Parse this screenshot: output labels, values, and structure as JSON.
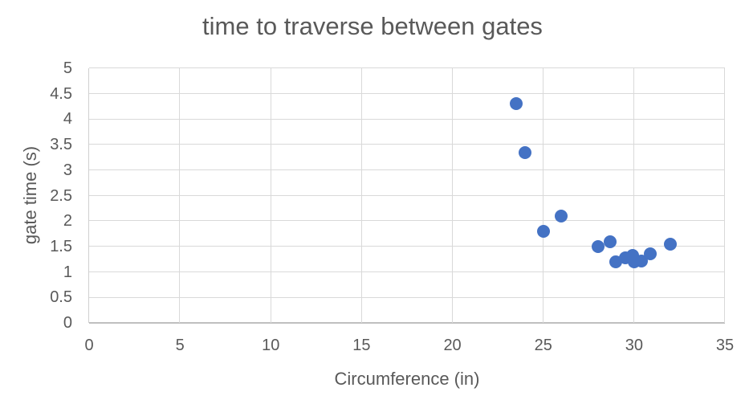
{
  "chart_data": {
    "type": "scatter",
    "title": "time to traverse between gates",
    "xlabel": "Circumference (in)",
    "ylabel": "gate time (s)",
    "xlim": [
      0,
      35
    ],
    "ylim": [
      0,
      5
    ],
    "x_ticks": [
      0,
      5,
      10,
      15,
      20,
      25,
      30,
      35
    ],
    "y_ticks": [
      0,
      0.5,
      1,
      1.5,
      2,
      2.5,
      3,
      3.5,
      4,
      4.5,
      5
    ],
    "grid": true,
    "legend": "none",
    "series": [
      {
        "name": "gate time",
        "marker": "circle",
        "marker_color": "#4472C4",
        "points": [
          [
            23.5,
            4.3
          ],
          [
            24,
            3.35
          ],
          [
            25,
            1.8
          ],
          [
            26,
            2.1
          ],
          [
            28,
            1.5
          ],
          [
            28.7,
            1.6
          ],
          [
            29,
            1.2
          ],
          [
            29.5,
            1.28
          ],
          [
            29.9,
            1.32
          ],
          [
            30,
            1.2
          ],
          [
            30.4,
            1.22
          ],
          [
            30.9,
            1.35
          ],
          [
            32,
            1.55
          ]
        ]
      }
    ]
  },
  "colors": {
    "text": "#595959",
    "gridline": "#d9d9d9",
    "axis_line": "#bfbfbf",
    "marker": "#4472C4",
    "background": "#ffffff"
  }
}
